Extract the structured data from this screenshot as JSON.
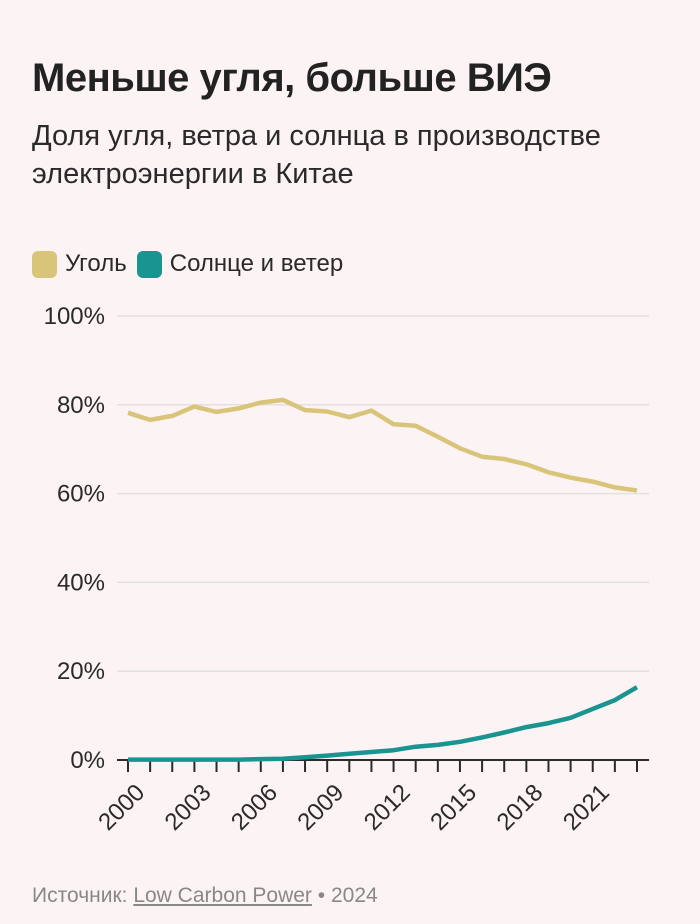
{
  "title": "Меньше угля, больше ВИЭ",
  "subtitle": "Доля угля, ветра и солнца в производстве электроэнергии в Китае",
  "footer": {
    "source_label": "Источник:",
    "source_link": "Low Carbon Power",
    "separator": "•",
    "year": "2024"
  },
  "colors": {
    "background": "#fcf4f4",
    "coal": "#d9c57a",
    "wind_solar": "#1a9490",
    "grid": "#e3e0e0",
    "axis": "#2a2a2a"
  },
  "chart_data": {
    "type": "line",
    "title": "Меньше угля, больше ВИЭ",
    "subtitle": "Доля угля, ветра и солнца в производстве электроэнергии в Китае",
    "xlabel": "",
    "ylabel": "",
    "x": [
      2000,
      2001,
      2002,
      2003,
      2004,
      2005,
      2006,
      2007,
      2008,
      2009,
      2010,
      2011,
      2012,
      2013,
      2014,
      2015,
      2016,
      2017,
      2018,
      2019,
      2020,
      2021,
      2022,
      2023
    ],
    "xticks": [
      "2000",
      "2003",
      "2006",
      "2009",
      "2012",
      "2015",
      "2018",
      "2021"
    ],
    "xtick_values": [
      2000,
      2003,
      2006,
      2009,
      2012,
      2015,
      2018,
      2021
    ],
    "yticks": [
      "0%",
      "20%",
      "40%",
      "60%",
      "80%",
      "100%"
    ],
    "ytick_values": [
      0,
      20,
      40,
      60,
      80,
      100
    ],
    "ylim": [
      0,
      100
    ],
    "xlim": [
      2000,
      2023
    ],
    "grid": true,
    "legend_position": "top-left",
    "series": [
      {
        "name": "Уголь",
        "color": "#d9c57a",
        "values": [
          78.2,
          76.6,
          77.5,
          79.6,
          78.4,
          79.2,
          80.5,
          81.1,
          78.8,
          78.5,
          77.2,
          78.7,
          75.6,
          75.3,
          72.8,
          70.2,
          68.3,
          67.8,
          66.6,
          64.8,
          63.6,
          62.7,
          61.4,
          60.7
        ]
      },
      {
        "name": "Солнце и ветер",
        "color": "#1a9490",
        "values": [
          0.1,
          0.1,
          0.1,
          0.1,
          0.1,
          0.1,
          0.2,
          0.3,
          0.6,
          1.0,
          1.4,
          1.8,
          2.2,
          3.0,
          3.4,
          4.1,
          5.1,
          6.2,
          7.4,
          8.3,
          9.5,
          11.5,
          13.5,
          16.4
        ]
      }
    ]
  }
}
